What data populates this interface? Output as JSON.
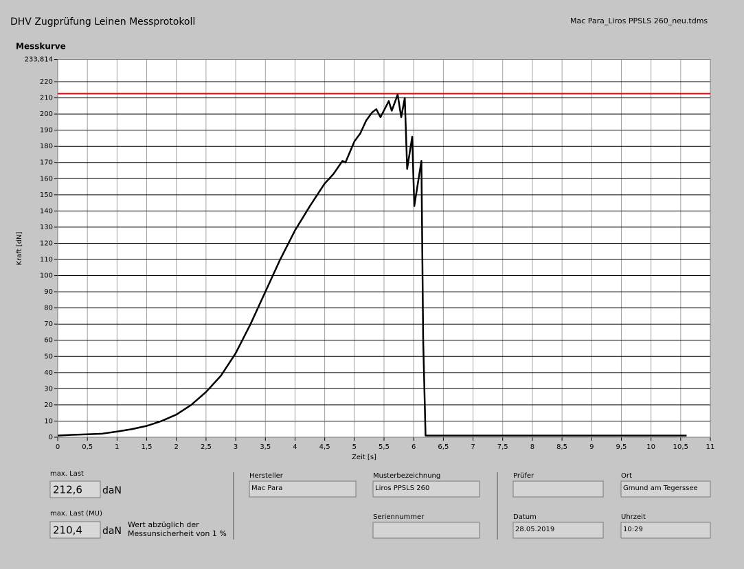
{
  "header": {
    "title": "DHV Zugprüfung Leinen Messprotokoll",
    "file": "Mac Para_Liros PPSLS 260_neu.tdms"
  },
  "chart_data": {
    "type": "line",
    "title": "Messkurve",
    "x_label": "Zeit [s]",
    "y_label": "Kraft [dN]",
    "x": [
      0,
      0.25,
      0.5,
      0.75,
      1,
      1.25,
      1.5,
      1.75,
      2,
      2.25,
      2.5,
      2.75,
      3,
      3.25,
      3.5,
      3.75,
      4,
      4.25,
      4.5,
      4.65,
      4.8,
      4.85,
      5,
      5.1,
      5.2,
      5.3,
      5.37,
      5.44,
      5.58,
      5.63,
      5.73,
      5.79,
      5.85,
      5.89,
      5.975,
      6.01,
      6.13,
      6.16,
      6.2,
      10.6
    ],
    "values": [
      1,
      1.5,
      1.8,
      2.2,
      3.5,
      5,
      7,
      10,
      14,
      20,
      28,
      38,
      52,
      70,
      90,
      110,
      128,
      143,
      157,
      163,
      171,
      170,
      183,
      188,
      196,
      201,
      203,
      198,
      208,
      202,
      212,
      198,
      210,
      166,
      186,
      143,
      171,
      60,
      1,
      1
    ],
    "color": "#000000",
    "limit_line": {
      "value": 212.6,
      "color": "#e00000"
    },
    "xlim": [
      0,
      11
    ],
    "ylim": [
      0,
      233.814
    ],
    "xticks": [
      0,
      {
        "value": 0.5,
        "label": "0,5"
      },
      1,
      {
        "value": 1.5,
        "label": "1,5"
      },
      2,
      {
        "value": 2.5,
        "label": "2,5"
      },
      3,
      {
        "value": 3.5,
        "label": "3,5"
      },
      4,
      {
        "value": 4.5,
        "label": "4,5"
      },
      5,
      {
        "value": 5.5,
        "label": "5,5"
      },
      6,
      {
        "value": 6.5,
        "label": "6,5"
      },
      7,
      {
        "value": 7.5,
        "label": "7,5"
      },
      8,
      {
        "value": 8.5,
        "label": "8,5"
      },
      9,
      {
        "value": 9.5,
        "label": "9,5"
      },
      10,
      {
        "value": 10.5,
        "label": "10,5"
      },
      11
    ],
    "yticks": [
      0,
      10,
      20,
      30,
      40,
      50,
      60,
      70,
      80,
      90,
      100,
      110,
      120,
      130,
      140,
      150,
      160,
      170,
      180,
      190,
      200,
      210,
      220,
      {
        "value": 233.814,
        "label": "233,814"
      }
    ],
    "grid": true
  },
  "results": {
    "max_load": {
      "label": "max. Last",
      "value": "212,6",
      "unit": "daN"
    },
    "max_load_mu": {
      "label": "max. Last (MU)",
      "value": "210,4",
      "unit": "daN",
      "note": [
        "Wert abzüglich der",
        "Messunsicherheit von 1 %"
      ]
    }
  },
  "fields": [
    {
      "label": "Hersteller",
      "value": "Mac Para"
    },
    {
      "label": "Musterbezeichnung",
      "value": "Liros PPSLS 260"
    },
    {
      "label": "Seriennummer"
    },
    {
      "label": "Prüfer"
    },
    {
      "label": "Ort",
      "value": "Gmund am Tegerssee"
    },
    {
      "label": "Datum",
      "value": "28.05.2019"
    },
    {
      "label": "Uhrzeit",
      "value": "10:29"
    }
  ]
}
